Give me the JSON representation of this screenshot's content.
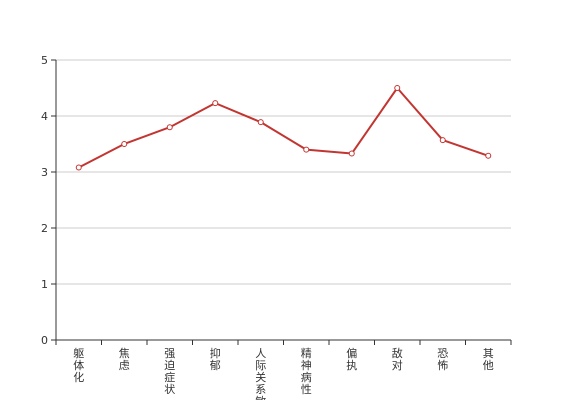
{
  "chart_data": {
    "type": "line",
    "categories": [
      "躯体化",
      "焦虑",
      "强迫症状",
      "抑郁",
      "人际关系敏感",
      "精神病性",
      "偏执",
      "敌对",
      "恐怖",
      "其他"
    ],
    "series": [
      {
        "values": [
          3.08,
          3.5,
          3.8,
          4.23,
          3.89,
          3.4,
          3.33,
          4.5,
          3.57,
          3.29
        ]
      }
    ],
    "ylim": [
      0,
      5
    ],
    "yticks": [
      0,
      1,
      2,
      3,
      4,
      5
    ],
    "grid": true,
    "legend": "none",
    "colors": {
      "line": "#c23531",
      "marker_fill": "#ffffff",
      "grid": "#cccccc",
      "axis": "#333333"
    }
  }
}
